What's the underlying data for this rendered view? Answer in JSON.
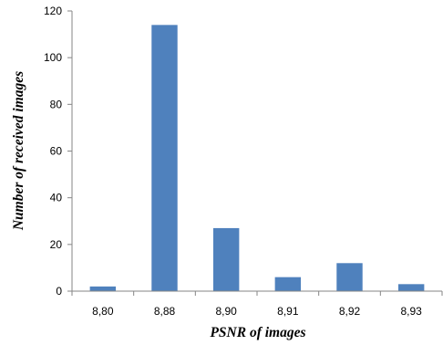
{
  "chart_data": {
    "type": "bar",
    "categories": [
      "8,80",
      "8,88",
      "8,90",
      "8,91",
      "8,92",
      "8,93"
    ],
    "values": [
      2,
      114,
      27,
      6,
      12,
      3
    ],
    "xlabel": "PSNR of images",
    "ylabel": "Number of received images",
    "ylim": [
      0,
      120
    ],
    "yticks": [
      "0",
      "20",
      "40",
      "60",
      "80",
      "100",
      "120"
    ],
    "grid": false,
    "legend": "none",
    "bar_color": "#4f81bd",
    "axis_color": "#868686"
  }
}
